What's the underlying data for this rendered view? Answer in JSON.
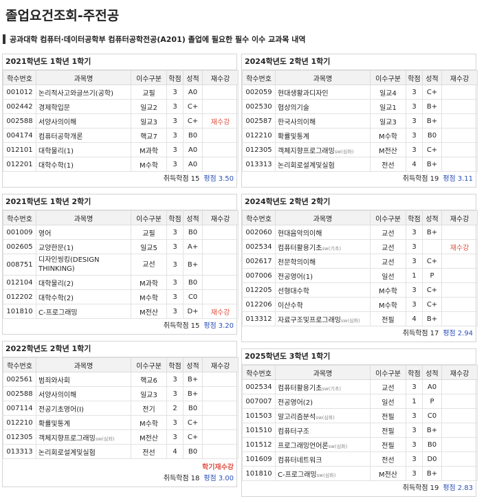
{
  "page_title": "졸업요건조회-주전공",
  "subheading": "공과대학 컴퓨터·데이터공학부 컴퓨터공학전공(A201) 졸업에 필요한 필수 이수 교과목 내역",
  "columns": {
    "code": "학수번호",
    "name": "과목명",
    "type": "이수구분",
    "credit": "학점",
    "grade": "성적",
    "retake": "재수강"
  },
  "labels": {
    "credits": "취득학점",
    "gpa": "평점"
  },
  "left": [
    {
      "title": "2021학년도 1학년 1학기",
      "credits": "15",
      "gpa": "3.50",
      "note": "",
      "rows": [
        {
          "code": "001012",
          "name": "논리적사고와글쓰기(공학)",
          "tag": "",
          "type": "교필",
          "credit": "3",
          "grade": "A0",
          "retake": ""
        },
        {
          "code": "002442",
          "name": "경제학입문",
          "tag": "",
          "type": "일교2",
          "credit": "3",
          "grade": "C+",
          "retake": ""
        },
        {
          "code": "002588",
          "name": "서양사의이해",
          "tag": "",
          "type": "일교3",
          "credit": "3",
          "grade": "C+",
          "retake": "재수강"
        },
        {
          "code": "004174",
          "name": "컴퓨터공학개론",
          "tag": "",
          "type": "핵교7",
          "credit": "3",
          "grade": "B0",
          "retake": ""
        },
        {
          "code": "012101",
          "name": "대학물리(1)",
          "tag": "",
          "type": "M과학",
          "credit": "3",
          "grade": "A0",
          "retake": ""
        },
        {
          "code": "012201",
          "name": "대학수학(1)",
          "tag": "",
          "type": "M수학",
          "credit": "3",
          "grade": "A0",
          "retake": ""
        }
      ]
    },
    {
      "title": "2021학년도 1학년 2학기",
      "credits": "15",
      "gpa": "3.20",
      "note": "",
      "rows": [
        {
          "code": "001009",
          "name": "영어",
          "tag": "",
          "type": "교필",
          "credit": "3",
          "grade": "B0",
          "retake": ""
        },
        {
          "code": "002605",
          "name": "교양한문(1)",
          "tag": "",
          "type": "일교5",
          "credit": "3",
          "grade": "A+",
          "retake": ""
        },
        {
          "code": "008751",
          "name": "디자인씽킹(DESIGN THINKING)",
          "tag": "",
          "type": "교선",
          "credit": "3",
          "grade": "B+",
          "retake": ""
        },
        {
          "code": "012104",
          "name": "대학물리(2)",
          "tag": "",
          "type": "M과학",
          "credit": "3",
          "grade": "B0",
          "retake": ""
        },
        {
          "code": "012202",
          "name": "대학수학(2)",
          "tag": "",
          "type": "M수학",
          "credit": "3",
          "grade": "C0",
          "retake": ""
        },
        {
          "code": "101810",
          "name": "C-프로그래밍",
          "tag": "",
          "type": "M전산",
          "credit": "3",
          "grade": "D+",
          "retake": "재수강"
        }
      ]
    },
    {
      "title": "2022학년도 2학년 1학기",
      "credits": "18",
      "gpa": "3.00",
      "note": "학기재수강",
      "rows": [
        {
          "code": "002561",
          "name": "범죄와사회",
          "tag": "",
          "type": "핵교6",
          "credit": "3",
          "grade": "B+",
          "retake": ""
        },
        {
          "code": "002588",
          "name": "서양사의이해",
          "tag": "",
          "type": "일교3",
          "credit": "3",
          "grade": "B+",
          "retake": ""
        },
        {
          "code": "007114",
          "name": "전공기초영어(I)",
          "tag": "",
          "type": "전기",
          "credit": "2",
          "grade": "B0",
          "retake": ""
        },
        {
          "code": "012210",
          "name": "확률및통계",
          "tag": "",
          "type": "M수학",
          "credit": "3",
          "grade": "C+",
          "retake": ""
        },
        {
          "code": "012305",
          "name": "객체지향프로그래밍",
          "tag": "sw(심화)",
          "type": "M전산",
          "credit": "3",
          "grade": "C+",
          "retake": ""
        },
        {
          "code": "013313",
          "name": "논리회로설계및실험",
          "tag": "",
          "type": "전선",
          "credit": "4",
          "grade": "B0",
          "retake": ""
        }
      ]
    }
  ],
  "right": [
    {
      "title": "2024학년도 2학년 1학기",
      "credits": "19",
      "gpa": "3.11",
      "note": "",
      "rows": [
        {
          "code": "002059",
          "name": "현대생활과디자인",
          "tag": "",
          "type": "일교4",
          "credit": "3",
          "grade": "C+",
          "retake": ""
        },
        {
          "code": "002530",
          "name": "협상의기술",
          "tag": "",
          "type": "일교1",
          "credit": "3",
          "grade": "B+",
          "retake": ""
        },
        {
          "code": "002587",
          "name": "한국사의이해",
          "tag": "",
          "type": "일교3",
          "credit": "3",
          "grade": "B+",
          "retake": ""
        },
        {
          "code": "012210",
          "name": "확률및통계",
          "tag": "",
          "type": "M수학",
          "credit": "3",
          "grade": "B0",
          "retake": ""
        },
        {
          "code": "012305",
          "name": "객체지향프로그래밍",
          "tag": "sw(심화)",
          "type": "M전산",
          "credit": "3",
          "grade": "C+",
          "retake": ""
        },
        {
          "code": "013313",
          "name": "논리회로설계및실험",
          "tag": "",
          "type": "전선",
          "credit": "4",
          "grade": "B+",
          "retake": ""
        }
      ]
    },
    {
      "title": "2024학년도 2학년 2학기",
      "credits": "17",
      "gpa": "2.94",
      "note": "",
      "rows": [
        {
          "code": "002060",
          "name": "현대음악의이해",
          "tag": "",
          "type": "교선",
          "credit": "3",
          "grade": "B+",
          "retake": ""
        },
        {
          "code": "002534",
          "name": "컴퓨터활용기초",
          "tag": "sw(기초)",
          "type": "교선",
          "credit": "3",
          "grade": "",
          "retake": "재수강"
        },
        {
          "code": "002617",
          "name": "천문학의이해",
          "tag": "",
          "type": "교선",
          "credit": "3",
          "grade": "C+",
          "retake": ""
        },
        {
          "code": "007006",
          "name": "전공영어(1)",
          "tag": "",
          "type": "일선",
          "credit": "1",
          "grade": "P",
          "retake": ""
        },
        {
          "code": "012205",
          "name": "선형대수학",
          "tag": "",
          "type": "M수학",
          "credit": "3",
          "grade": "C+",
          "retake": ""
        },
        {
          "code": "012206",
          "name": "이산수학",
          "tag": "",
          "type": "M수학",
          "credit": "3",
          "grade": "C+",
          "retake": ""
        },
        {
          "code": "013312",
          "name": "자료구조및프로그래밍",
          "tag": "sw(심화)",
          "type": "전필",
          "credit": "4",
          "grade": "B+",
          "retake": ""
        }
      ]
    },
    {
      "title": "2025학년도 3학년 1학기",
      "credits": "19",
      "gpa": "2.83",
      "note": "",
      "rows": [
        {
          "code": "002534",
          "name": "컴퓨터활용기초",
          "tag": "sw(기초)",
          "type": "교선",
          "credit": "3",
          "grade": "A0",
          "retake": ""
        },
        {
          "code": "007007",
          "name": "전공영어(2)",
          "tag": "",
          "type": "일선",
          "credit": "1",
          "grade": "P",
          "retake": ""
        },
        {
          "code": "101503",
          "name": "알고리즘분석",
          "tag": "sw(심화)",
          "type": "전필",
          "credit": "3",
          "grade": "C0",
          "retake": ""
        },
        {
          "code": "101510",
          "name": "컴퓨터구조",
          "tag": "",
          "type": "전필",
          "credit": "3",
          "grade": "B+",
          "retake": ""
        },
        {
          "code": "101512",
          "name": "프로그래밍언어론",
          "tag": "sw(심화)",
          "type": "전필",
          "credit": "3",
          "grade": "B0",
          "retake": ""
        },
        {
          "code": "101609",
          "name": "컴퓨터네트워크",
          "tag": "",
          "type": "전선",
          "credit": "3",
          "grade": "D0",
          "retake": ""
        },
        {
          "code": "101810",
          "name": "C-프로그래밍",
          "tag": "sw(심화)",
          "type": "M전산",
          "credit": "3",
          "grade": "B+",
          "retake": ""
        }
      ]
    }
  ]
}
